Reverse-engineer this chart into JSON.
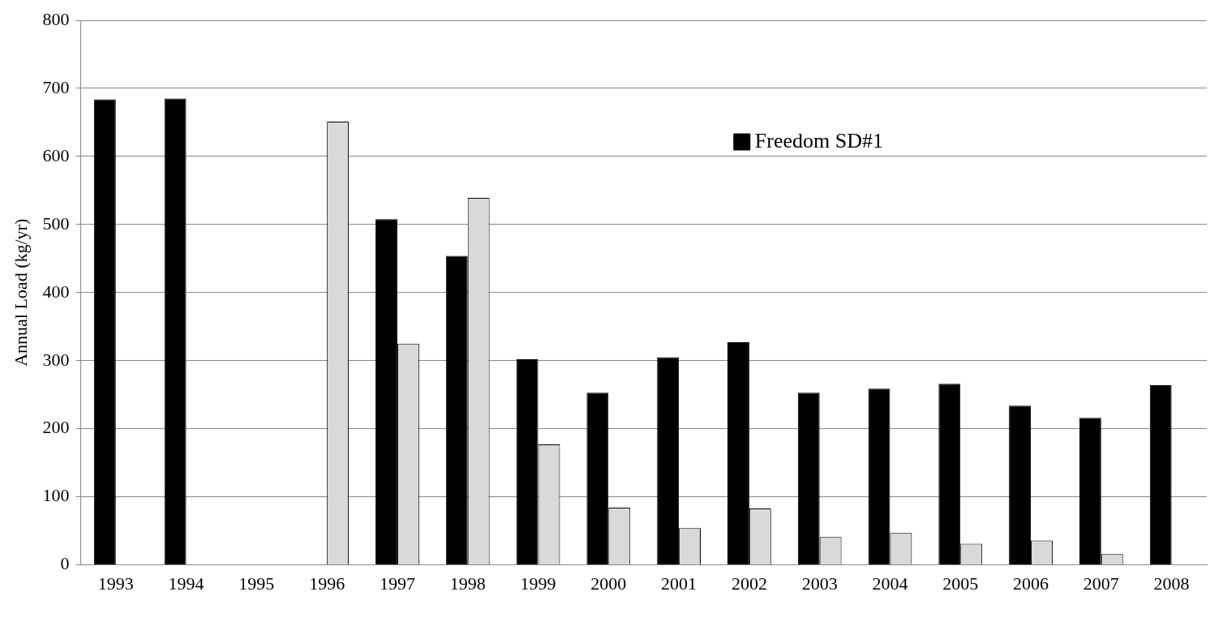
{
  "chart_data": {
    "type": "bar",
    "ylabel": "Annual Load (kg/yr)",
    "categories": [
      "1993",
      "1994",
      "1995",
      "1996",
      "1997",
      "1998",
      "1999",
      "2000",
      "2001",
      "2002",
      "2003",
      "2004",
      "2005",
      "2006",
      "2007",
      "2008"
    ],
    "series": [
      {
        "name": "Freedom SD#1",
        "color": "#000000",
        "values": [
          684,
          685,
          null,
          null,
          508,
          454,
          302,
          253,
          305,
          327,
          253,
          259,
          266,
          234,
          216,
          264
        ]
      },
      {
        "color": "#d9d9d9",
        "values": [
          null,
          null,
          null,
          651,
          325,
          539,
          177,
          84,
          54,
          83,
          41,
          47,
          31,
          36,
          16,
          null
        ]
      }
    ],
    "ylim": [
      0,
      800
    ],
    "yticks": [
      0,
      100,
      200,
      300,
      400,
      500,
      600,
      700,
      800
    ],
    "grid": "y",
    "legend": "top right"
  }
}
